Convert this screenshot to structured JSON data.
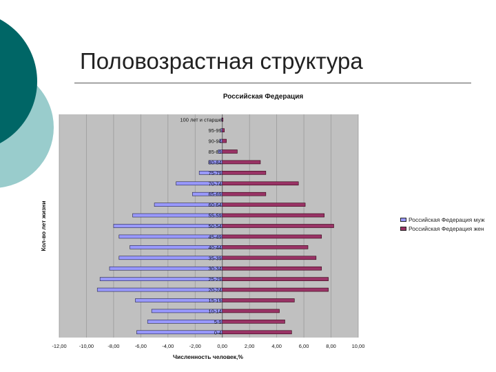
{
  "slide": {
    "title": "Половозрастная структура",
    "accent_dark": "#006666",
    "accent_light": "#99cccc"
  },
  "chart_data": {
    "type": "bar",
    "orientation": "horizontal",
    "title": "Российская Федерация",
    "xlabel": "Численность человек,%",
    "ylabel": "Кол-во лет жизни",
    "xlim": [
      -12,
      10
    ],
    "xticks": [
      -12,
      -10,
      -8,
      -6,
      -4,
      -2,
      0,
      2,
      4,
      6,
      8,
      10
    ],
    "xtick_labels": [
      "-12,00",
      "-10,00",
      "-8,00",
      "-6,00",
      "-4,00",
      "-2,00",
      "0,00",
      "2,00",
      "4,00",
      "6,00",
      "8,00",
      "10,00"
    ],
    "grid": true,
    "legend_position": "right",
    "categories": [
      "100 лет и старше",
      "95-99",
      "90-94",
      "85-89",
      "80-84",
      "75-79",
      "70-74",
      "65-69",
      "60-64",
      "55-59",
      "50-54",
      "45-49",
      "40-44",
      "35-39",
      "30-34",
      "25-29",
      "20-24",
      "15-19",
      "10-14",
      "5-9",
      "0-4"
    ],
    "series": [
      {
        "name": "Российская Федерация муж",
        "color": "#9999ff",
        "values": [
          -0.05,
          -0.1,
          -0.2,
          -0.3,
          -1.0,
          -1.7,
          -3.4,
          -2.2,
          -5.0,
          -6.6,
          -8.0,
          -7.6,
          -6.8,
          -7.6,
          -8.3,
          -9.0,
          -9.2,
          -6.4,
          -5.2,
          -5.5,
          -6.3
        ]
      },
      {
        "name": "Российская Федерация жен",
        "color": "#993366",
        "values": [
          0.05,
          0.15,
          0.3,
          1.1,
          2.8,
          3.2,
          5.6,
          3.2,
          6.1,
          7.5,
          8.2,
          7.3,
          6.3,
          6.9,
          7.3,
          7.8,
          7.8,
          5.3,
          4.2,
          4.6,
          5.1
        ]
      }
    ]
  }
}
